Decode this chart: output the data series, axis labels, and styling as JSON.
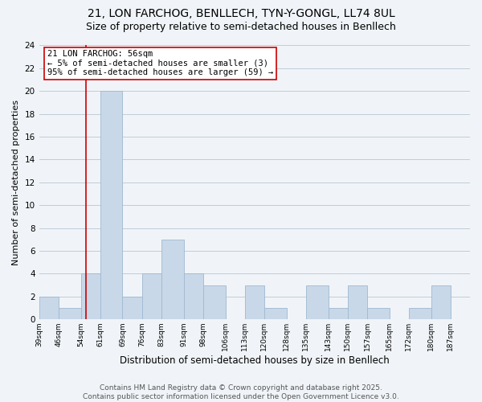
{
  "title": "21, LON FARCHOG, BENLLECH, TYN-Y-GONGL, LL74 8UL",
  "subtitle": "Size of property relative to semi-detached houses in Benllech",
  "xlabel": "Distribution of semi-detached houses by size in Benllech",
  "ylabel": "Number of semi-detached properties",
  "bin_labels": [
    "39sqm",
    "46sqm",
    "54sqm",
    "61sqm",
    "69sqm",
    "76sqm",
    "83sqm",
    "91sqm",
    "98sqm",
    "106sqm",
    "113sqm",
    "120sqm",
    "128sqm",
    "135sqm",
    "143sqm",
    "150sqm",
    "157sqm",
    "165sqm",
    "172sqm",
    "180sqm",
    "187sqm"
  ],
  "bin_edges": [
    39,
    46,
    54,
    61,
    69,
    76,
    83,
    91,
    98,
    106,
    113,
    120,
    128,
    135,
    143,
    150,
    157,
    165,
    172,
    180,
    187,
    194
  ],
  "counts": [
    2,
    1,
    4,
    20,
    2,
    4,
    7,
    4,
    3,
    0,
    3,
    1,
    0,
    3,
    1,
    3,
    1,
    0,
    1,
    3,
    0
  ],
  "bar_color": "#c8d8e8",
  "bar_edge_color": "#a0b8d0",
  "grid_color": "#c0ccd8",
  "bg_color": "#f0f4f8",
  "vline_x": 56,
  "vline_color": "#cc0000",
  "annotation_text": "21 LON FARCHOG: 56sqm\n← 5% of semi-detached houses are smaller (3)\n95% of semi-detached houses are larger (59) →",
  "annotation_box_color": "#ffffff",
  "annotation_box_edge": "#cc0000",
  "ylim": [
    0,
    24
  ],
  "yticks": [
    0,
    2,
    4,
    6,
    8,
    10,
    12,
    14,
    16,
    18,
    20,
    22,
    24
  ],
  "footer_text": "Contains HM Land Registry data © Crown copyright and database right 2025.\nContains public sector information licensed under the Open Government Licence v3.0.",
  "title_fontsize": 10,
  "subtitle_fontsize": 9,
  "annotation_fontsize": 7.5,
  "footer_fontsize": 6.5,
  "ylabel_fontsize": 8,
  "xlabel_fontsize": 8.5,
  "ytick_fontsize": 7.5,
  "xtick_fontsize": 6.5
}
